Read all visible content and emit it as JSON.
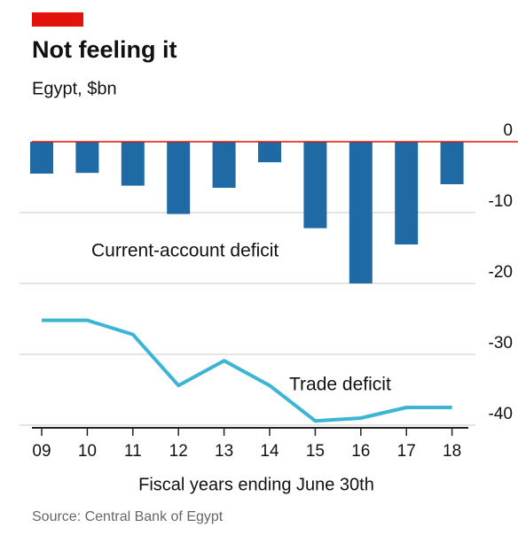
{
  "chart_data": {
    "type": "bar",
    "title": "Not feeling it",
    "subtitle": "Egypt, $bn",
    "xlabel": "Fiscal years ending June 30th",
    "source": "Source: Central Bank of Egypt",
    "categories": [
      "09",
      "10",
      "11",
      "12",
      "13",
      "14",
      "15",
      "16",
      "17",
      "18"
    ],
    "series": [
      {
        "name": "Current-account deficit",
        "type": "bar",
        "color": "#1f6aa5",
        "values": [
          -4.5,
          -4.4,
          -6.2,
          -10.2,
          -6.5,
          -2.9,
          -12.2,
          -20,
          -14.5,
          -6.0
        ]
      },
      {
        "name": "Trade deficit",
        "type": "line",
        "color": "#3bb5d3",
        "values": [
          -25.2,
          -25.2,
          -27.2,
          -34.4,
          -30.9,
          -34.4,
          -39.4,
          -39,
          -37.5,
          -37.5
        ]
      }
    ],
    "ylim": [
      -40,
      0
    ],
    "yticks": [
      0,
      -10,
      -20,
      -30,
      -40
    ],
    "grid": true,
    "zero_line_color": "#e3120b"
  }
}
